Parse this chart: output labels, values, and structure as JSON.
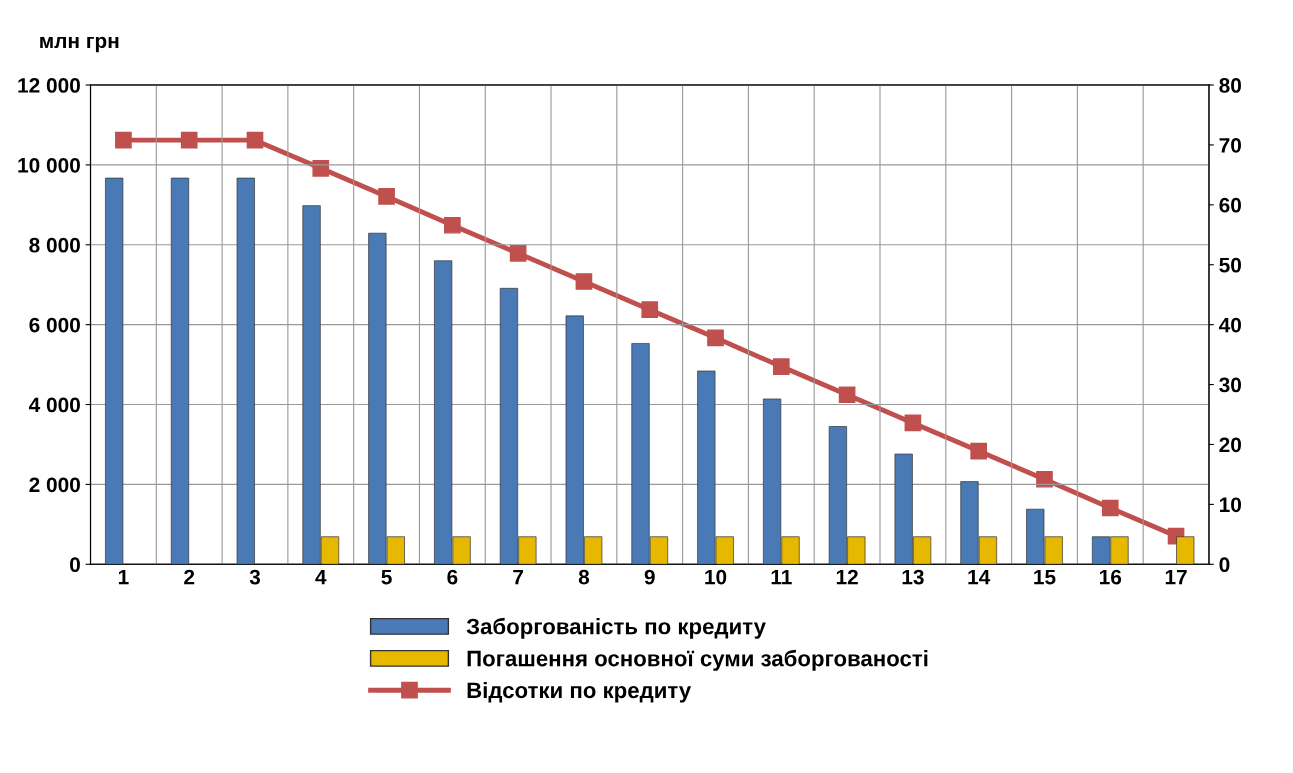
{
  "chart_data": {
    "type": "bar",
    "ylabel": "млн грн",
    "categories": [
      "1",
      "2",
      "3",
      "4",
      "5",
      "6",
      "7",
      "8",
      "9",
      "10",
      "11",
      "12",
      "13",
      "14",
      "15",
      "16",
      "17"
    ],
    "series": [
      {
        "name": "Заборгованість по кредиту",
        "color": "#4a7ab5",
        "values": [
          9670,
          9670,
          9670,
          8980,
          8290,
          7600,
          6910,
          6220,
          5530,
          4840,
          4140,
          3450,
          2760,
          2070,
          1380,
          690,
          null
        ]
      },
      {
        "name": "Погашення основної суми заборгованості",
        "color": "#e6b800",
        "values": [
          null,
          null,
          null,
          690,
          690,
          690,
          690,
          690,
          690,
          690,
          690,
          690,
          690,
          690,
          690,
          690,
          690
        ]
      },
      {
        "name": "Відсотки по кредиту",
        "type": "line",
        "axis": "y2",
        "color": "#c0504d",
        "marker": "square",
        "line_style": "solid",
        "values": [
          70.8,
          70.8,
          70.8,
          66.1,
          61.4,
          56.6,
          51.9,
          47.2,
          42.5,
          37.8,
          33.0,
          28.3,
          23.6,
          18.9,
          14.2,
          9.4,
          4.7
        ]
      }
    ],
    "ylim": [
      0,
      12000
    ],
    "yticks": [
      {
        "value": 0,
        "label": "0"
      },
      {
        "value": 2000,
        "label": "2 000"
      },
      {
        "value": 4000,
        "label": "4 000"
      },
      {
        "value": 6000,
        "label": "6 000"
      },
      {
        "value": 8000,
        "label": "8 000"
      },
      {
        "value": 10000,
        "label": "10 000"
      },
      {
        "value": 12000,
        "label": "12 000"
      }
    ],
    "y2lim": [
      0,
      80
    ],
    "y2ticks": [
      0,
      10,
      20,
      30,
      40,
      50,
      60,
      70,
      80
    ],
    "grid": true,
    "legend": "bottom"
  }
}
